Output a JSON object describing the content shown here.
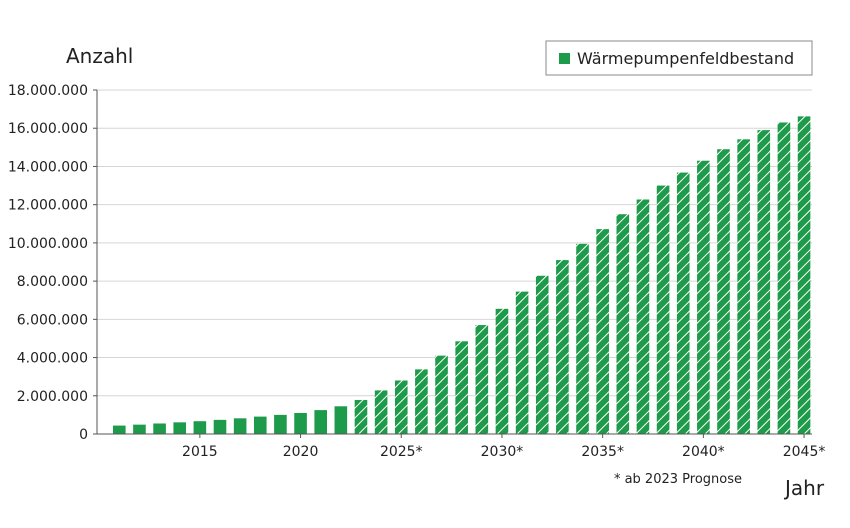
{
  "chart_data": {
    "type": "bar",
    "title": "",
    "ylabel": "Anzahl",
    "xlabel": "Jahr",
    "legend": {
      "label": "Wärmepumpenfeldbestand",
      "placement": "top-right"
    },
    "footnote": "* ab 2023 Prognose",
    "color": "#1e9a4b",
    "forecast_from": 2023,
    "ylim": [
      0,
      18000000
    ],
    "yticks": [
      0,
      2000000,
      4000000,
      6000000,
      8000000,
      10000000,
      12000000,
      14000000,
      16000000,
      18000000
    ],
    "ytick_labels": [
      "0",
      "2.000.000",
      "4.000.000",
      "6.000.000",
      "8.000.000",
      "10.000.000",
      "12.000.000",
      "14.000.000",
      "16.000.000",
      "18.000.000"
    ],
    "xticks": [
      {
        "year": 2015,
        "label": "2015"
      },
      {
        "year": 2020,
        "label": "2020"
      },
      {
        "year": 2025,
        "label": "2025*"
      },
      {
        "year": 2030,
        "label": "2030*"
      },
      {
        "year": 2035,
        "label": "2035*"
      },
      {
        "year": 2040,
        "label": "2040*"
      },
      {
        "year": 2045,
        "label": "2045*"
      }
    ],
    "categories": [
      2011,
      2012,
      2013,
      2014,
      2015,
      2016,
      2017,
      2018,
      2019,
      2020,
      2021,
      2022,
      2023,
      2024,
      2025,
      2026,
      2027,
      2028,
      2029,
      2030,
      2031,
      2032,
      2033,
      2034,
      2035,
      2036,
      2037,
      2038,
      2039,
      2040,
      2041,
      2042,
      2043,
      2044,
      2045
    ],
    "values": [
      440000,
      490000,
      550000,
      610000,
      670000,
      740000,
      820000,
      910000,
      1000000,
      1100000,
      1250000,
      1450000,
      1780000,
      2280000,
      2800000,
      3380000,
      4100000,
      4850000,
      5700000,
      6550000,
      7450000,
      8280000,
      9100000,
      9950000,
      10720000,
      11500000,
      12270000,
      13000000,
      13680000,
      14300000,
      14900000,
      15420000,
      15900000,
      16300000,
      16620000
    ],
    "grid": true
  }
}
